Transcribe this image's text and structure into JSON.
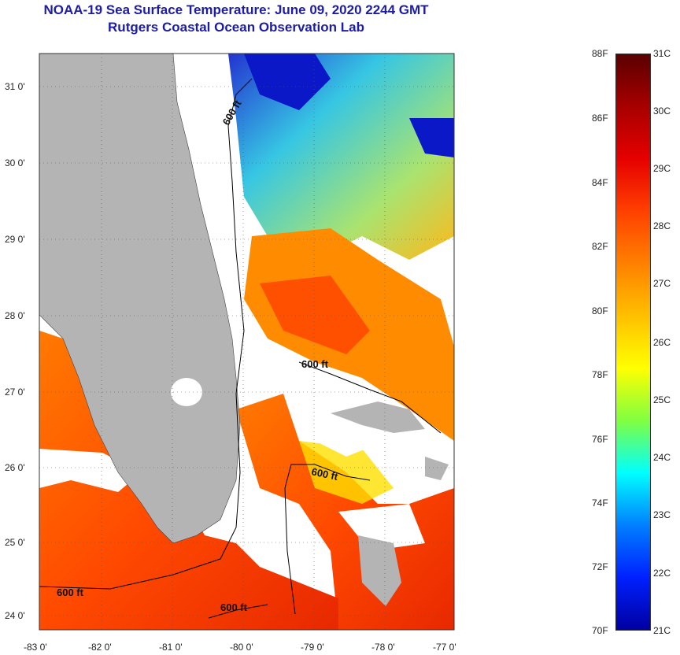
{
  "header": {
    "title": "NOAA-19 Sea Surface Temperature:  June 09, 2020 2244 GMT",
    "subtitle": "Rutgers Coastal Ocean Observation Lab"
  },
  "map": {
    "lat_ticks": [
      "31 0'",
      "30 0'",
      "29 0'",
      "28 0'",
      "27 0'",
      "26 0'",
      "25 0'",
      "24 0'"
    ],
    "lon_ticks": [
      "-83 0'",
      "-82 0'",
      "-81 0'",
      "-80 0'",
      "-79 0'",
      "-78 0'",
      "-77 0'"
    ],
    "contour_labels": [
      "600 ft",
      "600 ft",
      "600 ft",
      "600 ft",
      "600 ft"
    ],
    "colors": {
      "land": "#b4b4b4",
      "cloud": "#ffffff",
      "frame": "#333333"
    }
  },
  "colorbar": {
    "fahrenheit": [
      "88F",
      "86F",
      "84F",
      "82F",
      "80F",
      "78F",
      "76F",
      "74F",
      "72F",
      "70F"
    ],
    "celsius": [
      "31C",
      "30C",
      "29C",
      "28C",
      "27C",
      "26C",
      "25C",
      "24C",
      "23C",
      "22C",
      "21C"
    ],
    "gradient": [
      "#5a0000",
      "#a80000",
      "#e60000",
      "#ff4000",
      "#ff8000",
      "#ffc000",
      "#ffff00",
      "#80ff40",
      "#00ffff",
      "#0080ff",
      "#0020ff",
      "#0000a0"
    ]
  }
}
